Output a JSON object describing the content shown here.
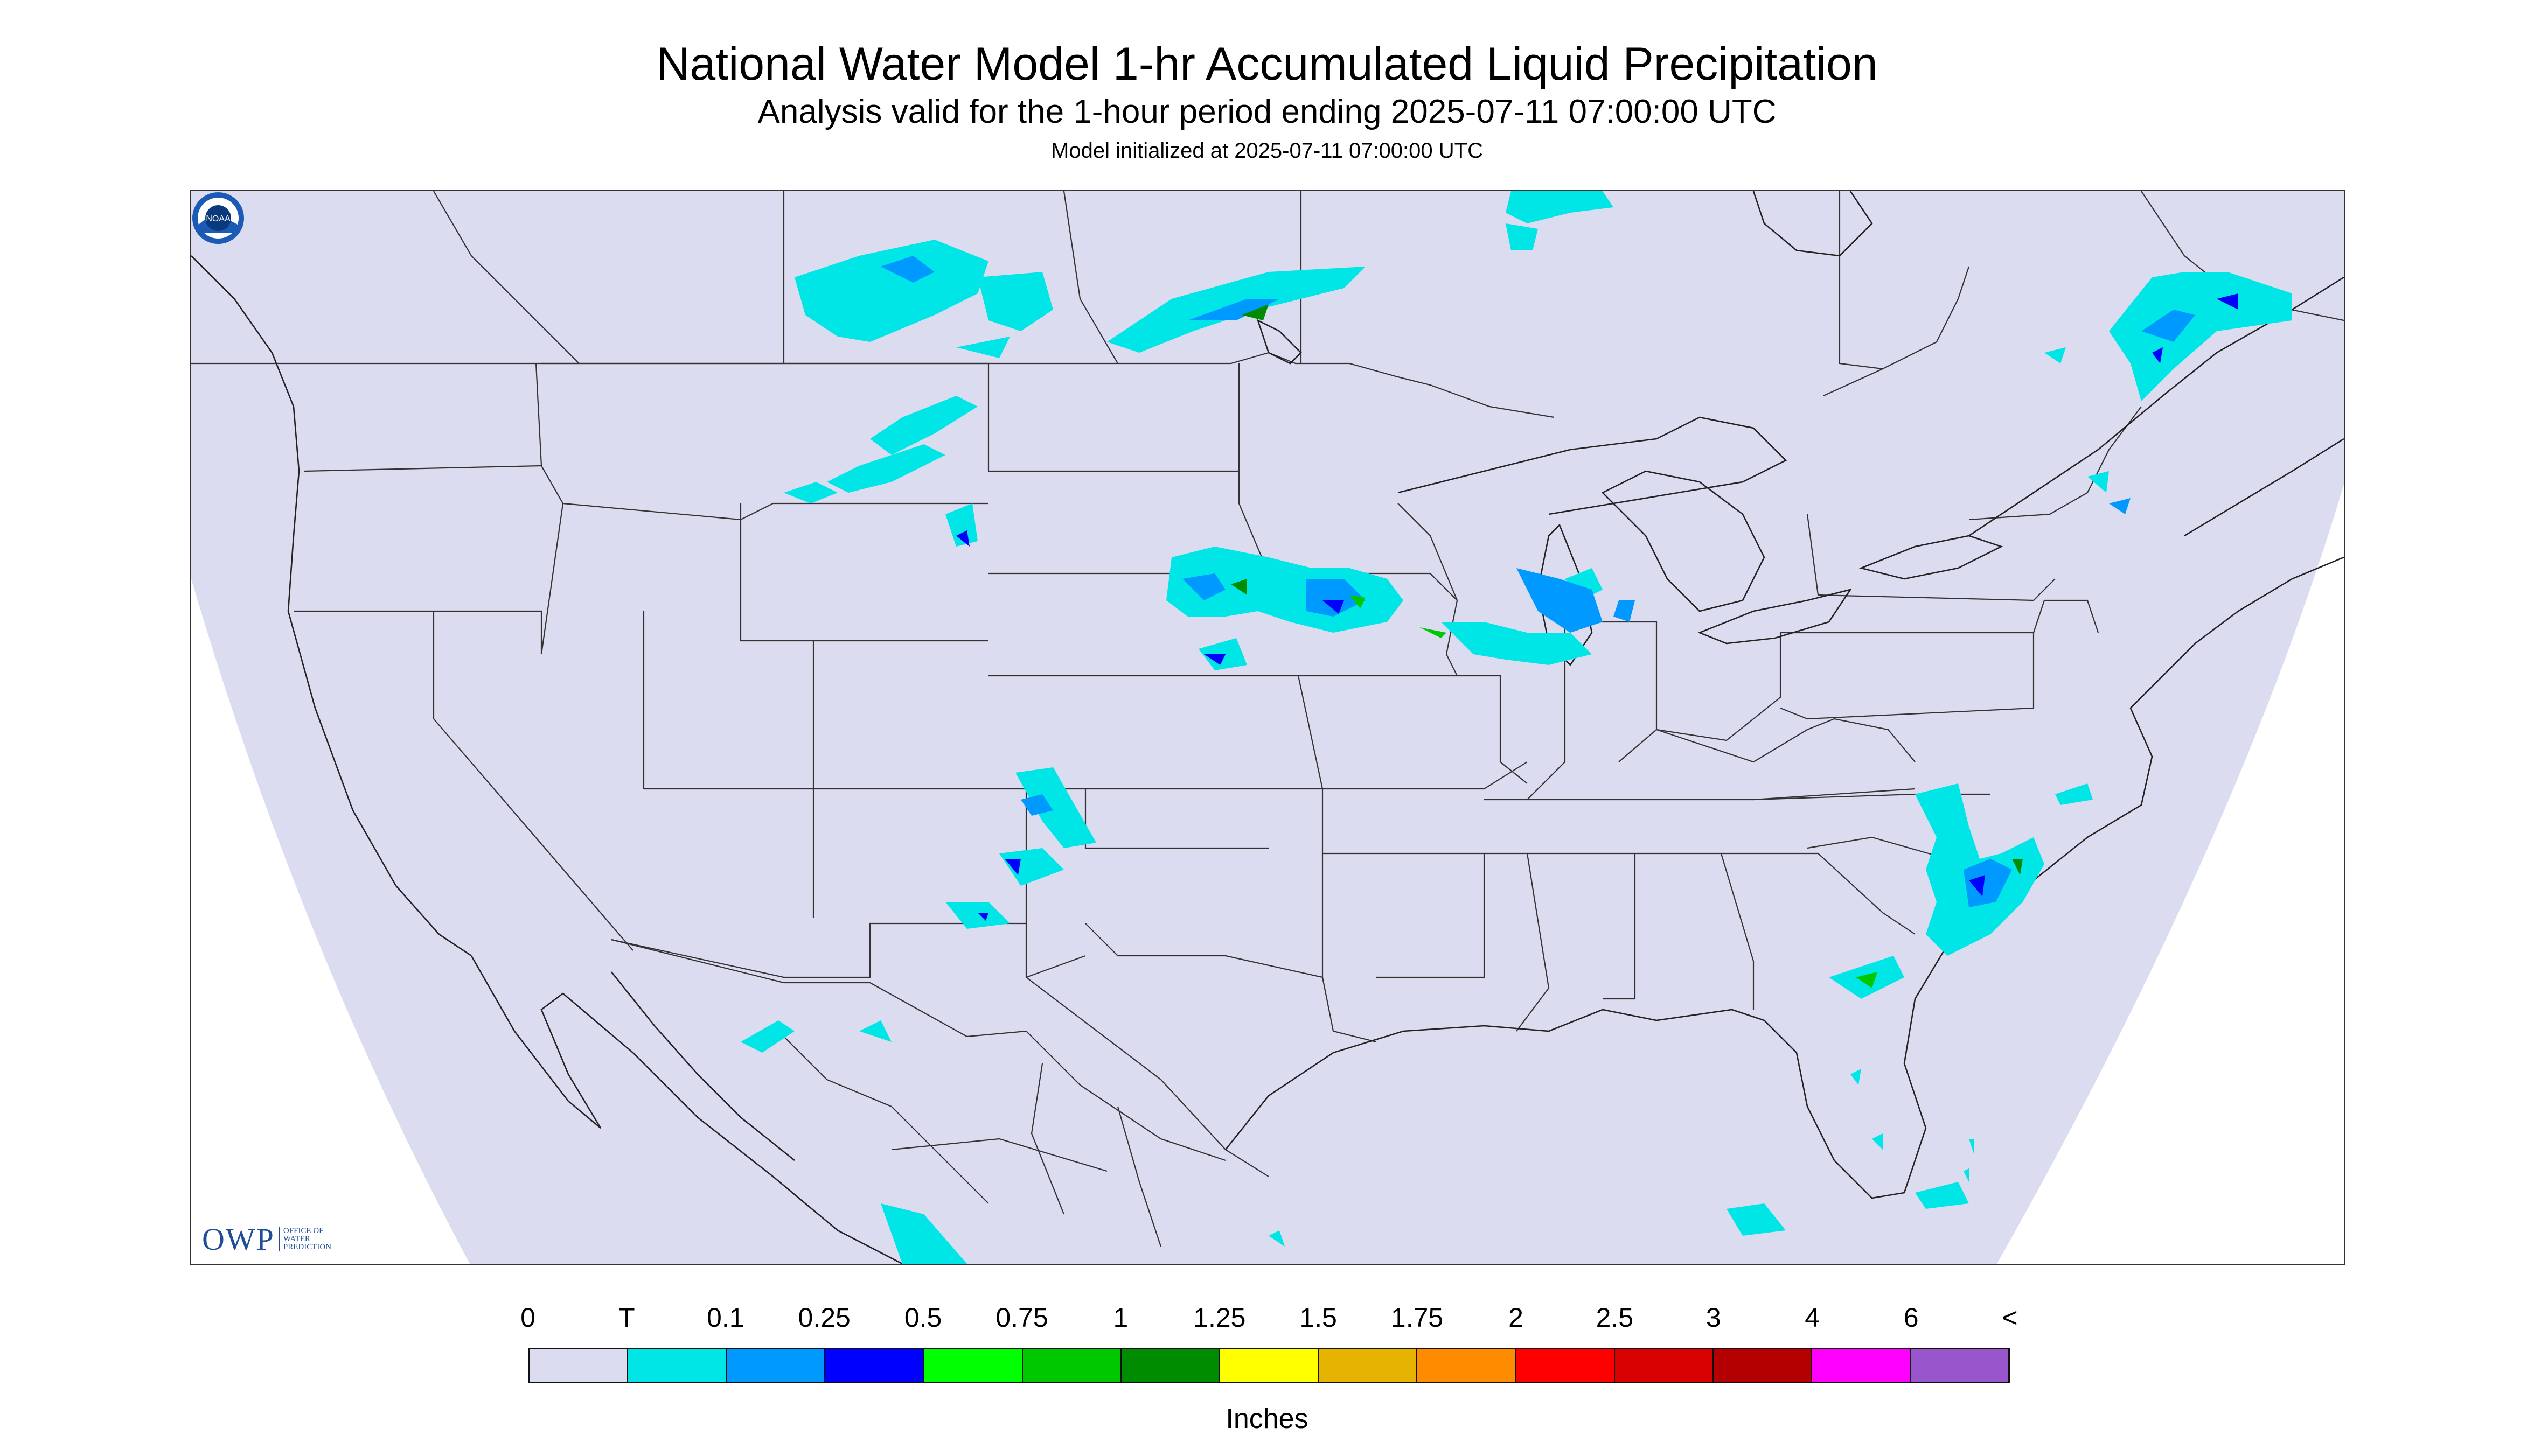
{
  "title": "National Water Model 1-hr Accumulated Liquid Precipitation",
  "subtitle": "Analysis valid for the 1-hour period ending 2025-07-11 07:00:00 UTC",
  "init_line": "Model initialized at 2025-07-11 07:00:00 UTC",
  "logo": {
    "owp_text": "OWP",
    "owp_small": [
      "OFFICE OF",
      "WATER",
      "PREDICTION"
    ],
    "noaa_text": "NOAA"
  },
  "map": {
    "domain_color": "#dcdcf0",
    "outside_color": "#ffffff",
    "line_color": "#333333"
  },
  "legend": {
    "labels": [
      "0",
      "T",
      "0.1",
      "0.25",
      "0.5",
      "0.75",
      "1",
      "1.25",
      "1.5",
      "1.75",
      "2",
      "2.5",
      "3",
      "4",
      "6",
      "<"
    ],
    "colors": [
      "#dcdcf0",
      "#00e5e5",
      "#0099ff",
      "#0000ff",
      "#00ff00",
      "#00c800",
      "#008c00",
      "#ffff00",
      "#e6b400",
      "#ff8c00",
      "#ff0000",
      "#d80000",
      "#b40000",
      "#ff00ff",
      "#9955cc"
    ],
    "units": "Inches"
  }
}
